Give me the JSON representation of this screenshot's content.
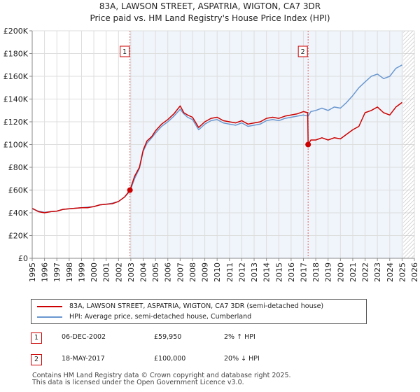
{
  "title_line1": "83A, LAWSON STREET, ASPATRIA, WIGTON, CA7 3DR",
  "title_line2": "Price paid vs. HM Land Registry's House Price Index (HPI)",
  "colors": {
    "price_paid": "#cc0000",
    "hpi": "#6a97d0",
    "grid": "#dddddd",
    "sale_marker_line": "#dd6666",
    "shade": "#e4ecf7"
  },
  "legend": {
    "price_paid_label": "83A, LAWSON STREET, ASPATRIA, WIGTON, CA7 3DR (semi-detached house)",
    "hpi_label": "HPI: Average price, semi-detached house, Cumberland"
  },
  "transactions": [
    {
      "num": "1",
      "date": "06-DEC-2002",
      "price": "£59,950",
      "hpi_change": "2% ↑ HPI"
    },
    {
      "num": "2",
      "date": "18-MAY-2017",
      "price": "£100,000",
      "hpi_change": "20% ↓ HPI"
    }
  ],
  "footer_line1": "Contains HM Land Registry data © Crown copyright and database right 2025.",
  "footer_line2": "This data is licensed under the Open Government Licence v3.0.",
  "chart_data": {
    "type": "line",
    "title": "83A, LAWSON STREET, ASPATRIA, WIGTON, CA7 3DR — Price paid vs. HM Land Registry's House Price Index (HPI)",
    "xlabel": "",
    "ylabel": "",
    "xlim": [
      1995,
      2026
    ],
    "ylim": [
      0,
      200000
    ],
    "x_ticks": [
      1995,
      1996,
      1997,
      1998,
      1999,
      2000,
      2001,
      2002,
      2003,
      2004,
      2005,
      2006,
      2007,
      2008,
      2009,
      2010,
      2011,
      2012,
      2013,
      2014,
      2015,
      2016,
      2017,
      2018,
      2019,
      2020,
      2021,
      2022,
      2023,
      2024,
      2025,
      2026
    ],
    "y_ticks": [
      0,
      20000,
      40000,
      60000,
      80000,
      100000,
      120000,
      140000,
      160000,
      180000,
      200000
    ],
    "y_tick_labels": [
      "£0",
      "£20K",
      "£40K",
      "£60K",
      "£80K",
      "£100K",
      "£120K",
      "£140K",
      "£160K",
      "£180K",
      "£200K"
    ],
    "grid": true,
    "sales": [
      {
        "label": "1",
        "x": 2002.93,
        "value": 59950
      },
      {
        "label": "2",
        "x": 2017.38,
        "value": 100000
      }
    ],
    "future_hatch_start": 2025.1,
    "series": [
      {
        "name": "83A, LAWSON STREET, ASPATRIA, WIGTON, CA7 3DR (semi-detached house)",
        "x": [
          1995.0,
          1995.5,
          1996.0,
          1996.5,
          1997.0,
          1997.5,
          1998.0,
          1998.5,
          1999.0,
          1999.5,
          2000.0,
          2000.5,
          2001.0,
          2001.5,
          2002.0,
          2002.5,
          2002.93,
          2003.3,
          2003.7,
          2004.0,
          2004.3,
          2004.7,
          2005.0,
          2005.5,
          2006.0,
          2006.5,
          2007.0,
          2007.3,
          2007.6,
          2008.0,
          2008.5,
          2009.0,
          2009.5,
          2010.0,
          2010.5,
          2011.0,
          2011.5,
          2012.0,
          2012.5,
          2013.0,
          2013.5,
          2014.0,
          2014.5,
          2015.0,
          2015.5,
          2016.0,
          2016.5,
          2017.0,
          2017.35,
          2017.38,
          2017.6,
          2018.0,
          2018.5,
          2019.0,
          2019.5,
          2020.0,
          2020.5,
          2021.0,
          2021.5,
          2022.0,
          2022.5,
          2023.0,
          2023.5,
          2024.0,
          2024.5,
          2025.0
        ],
        "values": [
          44000,
          41000,
          40000,
          41000,
          41500,
          43000,
          43500,
          44000,
          44500,
          44500,
          45500,
          47000,
          47500,
          48000,
          50000,
          54000,
          59950,
          72000,
          80000,
          95000,
          103000,
          107000,
          112000,
          118000,
          122000,
          127000,
          134000,
          128000,
          126000,
          124000,
          115000,
          120000,
          123000,
          124000,
          121000,
          120000,
          119000,
          121000,
          118000,
          119000,
          120000,
          123000,
          124000,
          123000,
          125000,
          126000,
          127000,
          129000,
          128000,
          100000,
          104000,
          104000,
          106000,
          104000,
          106000,
          105000,
          109000,
          113000,
          116000,
          128000,
          130000,
          133000,
          128000,
          126000,
          133000,
          137000
        ]
      },
      {
        "name": "HPI: Average price, semi-detached house, Cumberland",
        "x": [
          1995.0,
          1995.5,
          1996.0,
          1996.5,
          1997.0,
          1997.5,
          1998.0,
          1998.5,
          1999.0,
          1999.5,
          2000.0,
          2000.5,
          2001.0,
          2001.5,
          2002.0,
          2002.5,
          2002.93,
          2003.3,
          2003.7,
          2004.0,
          2004.3,
          2004.7,
          2005.0,
          2005.5,
          2006.0,
          2006.5,
          2007.0,
          2007.3,
          2007.6,
          2008.0,
          2008.5,
          2009.0,
          2009.5,
          2010.0,
          2010.5,
          2011.0,
          2011.5,
          2012.0,
          2012.5,
          2013.0,
          2013.5,
          2014.0,
          2014.5,
          2015.0,
          2015.5,
          2016.0,
          2016.5,
          2017.0,
          2017.38,
          2017.6,
          2018.0,
          2018.5,
          2019.0,
          2019.5,
          2020.0,
          2020.5,
          2021.0,
          2021.5,
          2022.0,
          2022.5,
          2023.0,
          2023.5,
          2024.0,
          2024.5,
          2025.0
        ],
        "values": [
          43500,
          41500,
          40500,
          41000,
          41500,
          43000,
          43500,
          44000,
          44500,
          45000,
          45500,
          47000,
          47500,
          48500,
          50000,
          54000,
          59000,
          70000,
          79000,
          94000,
          101000,
          106000,
          110000,
          116000,
          120000,
          125000,
          131000,
          127000,
          124000,
          122000,
          113000,
          118000,
          121000,
          122000,
          119000,
          118000,
          117000,
          119000,
          116000,
          117000,
          118000,
          121000,
          122000,
          121000,
          123000,
          124000,
          125000,
          126000,
          125000,
          129000,
          130000,
          132000,
          130000,
          133000,
          132000,
          137000,
          143000,
          150000,
          155000,
          160000,
          162000,
          158000,
          160000,
          167000,
          170000
        ]
      }
    ]
  }
}
